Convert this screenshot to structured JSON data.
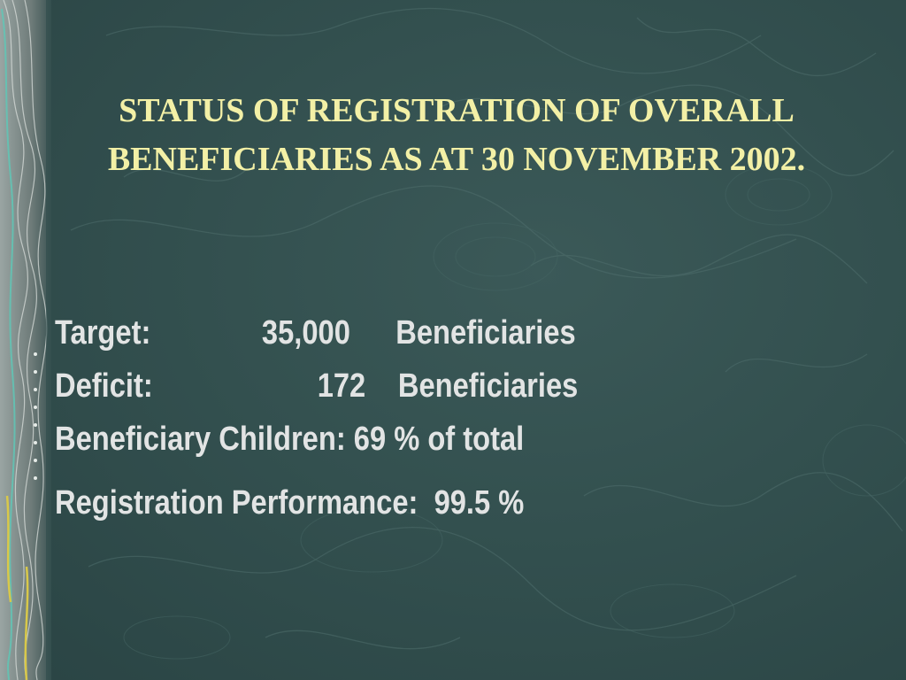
{
  "slide": {
    "title": "STATUS OF REGISTRATION OF OVERALL BENEFICIARIES AS AT 30 NOVEMBER 2002.",
    "background_color": "#2f4b4b",
    "title_color": "#f3f0a6",
    "text_color": "#e2e4e4",
    "rows": {
      "target": {
        "label": "Target:",
        "value": "35,000",
        "unit": "Beneficiaries"
      },
      "deficit": {
        "label": "Deficit:",
        "value": "172",
        "unit": "Beneficiaries"
      },
      "children": {
        "text": "Beneficiary Children: 69 % of total"
      },
      "performance": {
        "text": "Registration Performance:  99.5 %"
      }
    }
  }
}
